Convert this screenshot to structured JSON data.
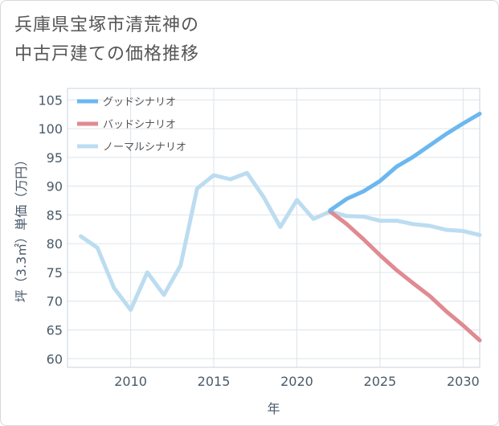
{
  "title": {
    "line1": "兵庫県宝塚市清荒神の",
    "line2": "中古戸建ての価格推移"
  },
  "chart_data": {
    "type": "line",
    "xlabel": "年",
    "ylabel": "坪（3.3㎡）単価（万円）",
    "xlim": [
      2006.2,
      2031
    ],
    "ylim": [
      58.5,
      107
    ],
    "xticks": [
      2010,
      2015,
      2020,
      2025,
      2030
    ],
    "yticks": [
      60,
      65,
      70,
      75,
      80,
      85,
      90,
      95,
      100,
      105
    ],
    "grid": true,
    "legend_position": "top-left",
    "series": [
      {
        "name": "グッドシナリオ",
        "color": "#6cb7ef",
        "x": [
          2022,
          2023,
          2024,
          2025,
          2026,
          2027,
          2028,
          2029,
          2030,
          2031
        ],
        "y": [
          85.8,
          87.8,
          89.1,
          90.9,
          93.4,
          95.1,
          97.1,
          99.1,
          100.9,
          102.6
        ]
      },
      {
        "name": "バッドシナリオ",
        "color": "#e08a91",
        "x": [
          2022,
          2023,
          2024,
          2025,
          2026,
          2027,
          2028,
          2029,
          2030,
          2031
        ],
        "y": [
          85.6,
          83.4,
          80.8,
          78.0,
          75.4,
          73.1,
          70.9,
          68.2,
          65.8,
          63.2
        ]
      },
      {
        "name": "ノーマルシナリオ",
        "color": "#bcdcf0",
        "x": [
          2007,
          2008,
          2009,
          2010,
          2011,
          2012,
          2013,
          2014,
          2015,
          2016,
          2017,
          2018,
          2019,
          2020,
          2021,
          2022,
          2023,
          2024,
          2025,
          2026,
          2027,
          2028,
          2029,
          2030,
          2031
        ],
        "y": [
          81.3,
          79.3,
          72.3,
          68.5,
          75.0,
          71.1,
          76.2,
          89.6,
          91.9,
          91.2,
          92.3,
          88.1,
          82.9,
          87.6,
          84.3,
          85.6,
          84.8,
          84.7,
          84.0,
          84.0,
          83.4,
          83.1,
          82.4,
          82.2,
          81.5
        ]
      }
    ]
  }
}
